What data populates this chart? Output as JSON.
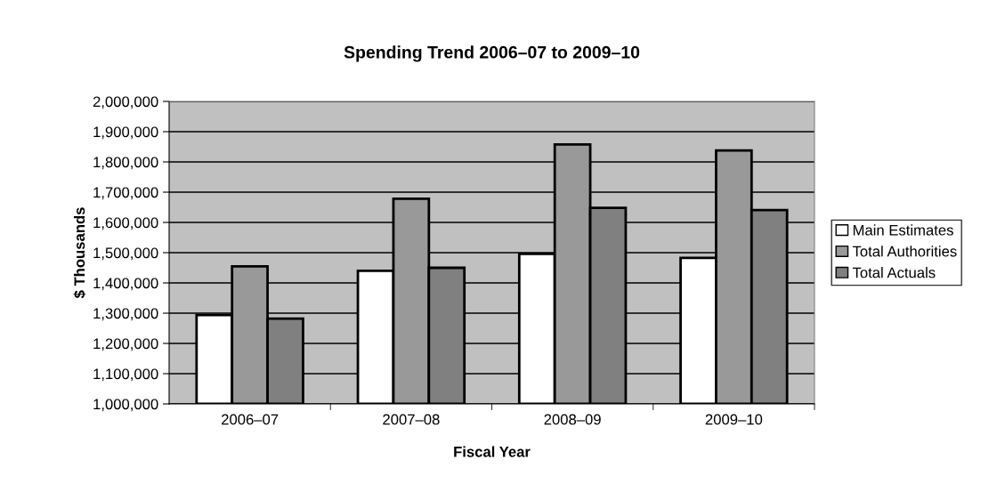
{
  "chart_data": {
    "type": "bar",
    "title": "Spending Trend 2006–07 to 2009–10",
    "xlabel": "Fiscal Year",
    "ylabel": "$ Thousands",
    "categories": [
      "2006–07",
      "2007–08",
      "2008–09",
      "2009–10"
    ],
    "series": [
      {
        "name": "Main Estimates",
        "color": "#ffffff",
        "values": [
          1294000,
          1440000,
          1496000,
          1483000
        ]
      },
      {
        "name": "Total Authorities",
        "color": "#999999",
        "values": [
          1455000,
          1678000,
          1858000,
          1838000
        ]
      },
      {
        "name": "Total Actuals",
        "color": "#808080",
        "values": [
          1282000,
          1450000,
          1648000,
          1641000
        ]
      }
    ],
    "ylim": [
      1000000,
      2000000
    ],
    "yticks": [
      {
        "value": 1000000,
        "label": "1,000,000"
      },
      {
        "value": 1100000,
        "label": "1,100,000"
      },
      {
        "value": 1200000,
        "label": "1,200,000"
      },
      {
        "value": 1300000,
        "label": "1,300,000"
      },
      {
        "value": 1400000,
        "label": "1,400,000"
      },
      {
        "value": 1500000,
        "label": "1,500,000"
      },
      {
        "value": 1600000,
        "label": "1,600,000"
      },
      {
        "value": 1700000,
        "label": "1,700,000"
      },
      {
        "value": 1800000,
        "label": "1,800,000"
      },
      {
        "value": 1900000,
        "label": "1,900,000"
      },
      {
        "value": 2000000,
        "label": "2,000,000"
      }
    ],
    "grid": "y",
    "legend": "right"
  }
}
